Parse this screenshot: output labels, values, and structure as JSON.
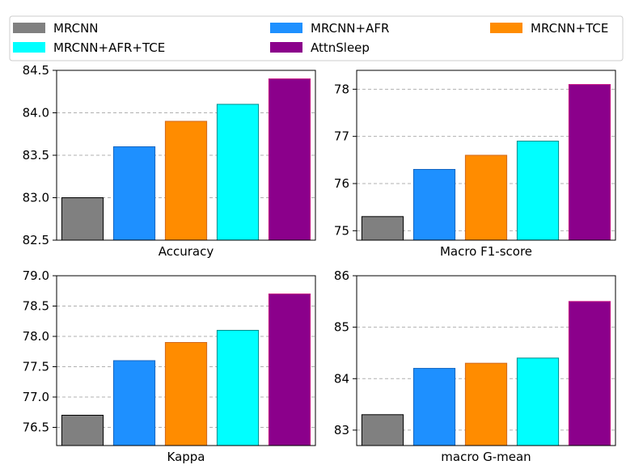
{
  "legend": {
    "placement": "top",
    "entries": [
      "MRCNN",
      "MRCNN+AFR",
      "MRCNN+TCE",
      "MRCNN+AFR+TCE",
      "AttnSleep"
    ]
  },
  "series_colors": [
    "#808080",
    "#1e90ff",
    "#ff8c00",
    "#00ffff",
    "#8b008b"
  ],
  "chart_data": [
    {
      "type": "bar",
      "xlabel": "Accuracy",
      "categories": [
        "MRCNN",
        "MRCNN+AFR",
        "MRCNN+TCE",
        "MRCNN+AFR+TCE",
        "AttnSleep"
      ],
      "values": [
        83.0,
        83.6,
        83.9,
        84.1,
        84.4
      ],
      "ylim": [
        82.5,
        84.5
      ],
      "yticks": [
        82.5,
        83.0,
        83.5,
        84.0,
        84.5
      ],
      "ytick_labels": [
        "82.5",
        "83.0",
        "83.5",
        "84.0",
        "84.5"
      ],
      "grid": "y-dashed"
    },
    {
      "type": "bar",
      "xlabel": "Macro F1-score",
      "categories": [
        "MRCNN",
        "MRCNN+AFR",
        "MRCNN+TCE",
        "MRCNN+AFR+TCE",
        "AttnSleep"
      ],
      "values": [
        75.3,
        76.3,
        76.6,
        76.9,
        78.1
      ],
      "ylim": [
        74.8,
        78.4
      ],
      "yticks": [
        75,
        76,
        77,
        78
      ],
      "ytick_labels": [
        "75",
        "76",
        "77",
        "78"
      ],
      "grid": "y-dashed"
    },
    {
      "type": "bar",
      "xlabel": "Kappa",
      "categories": [
        "MRCNN",
        "MRCNN+AFR",
        "MRCNN+TCE",
        "MRCNN+AFR+TCE",
        "AttnSleep"
      ],
      "values": [
        76.7,
        77.6,
        77.9,
        78.1,
        78.7
      ],
      "ylim": [
        76.2,
        79.0
      ],
      "yticks": [
        76.5,
        77.0,
        77.5,
        78.0,
        78.5,
        79.0
      ],
      "ytick_labels": [
        "76.5",
        "77.0",
        "77.5",
        "78.0",
        "78.5",
        "79.0"
      ],
      "grid": "y-dashed"
    },
    {
      "type": "bar",
      "xlabel": "macro G-mean",
      "categories": [
        "MRCNN",
        "MRCNN+AFR",
        "MRCNN+TCE",
        "MRCNN+AFR+TCE",
        "AttnSleep"
      ],
      "values": [
        83.3,
        84.2,
        84.3,
        84.4,
        85.5
      ],
      "ylim": [
        82.7,
        86.0
      ],
      "yticks": [
        83,
        84,
        85,
        86
      ],
      "ytick_labels": [
        "83",
        "84",
        "85",
        "86"
      ],
      "grid": "y-dashed"
    }
  ]
}
